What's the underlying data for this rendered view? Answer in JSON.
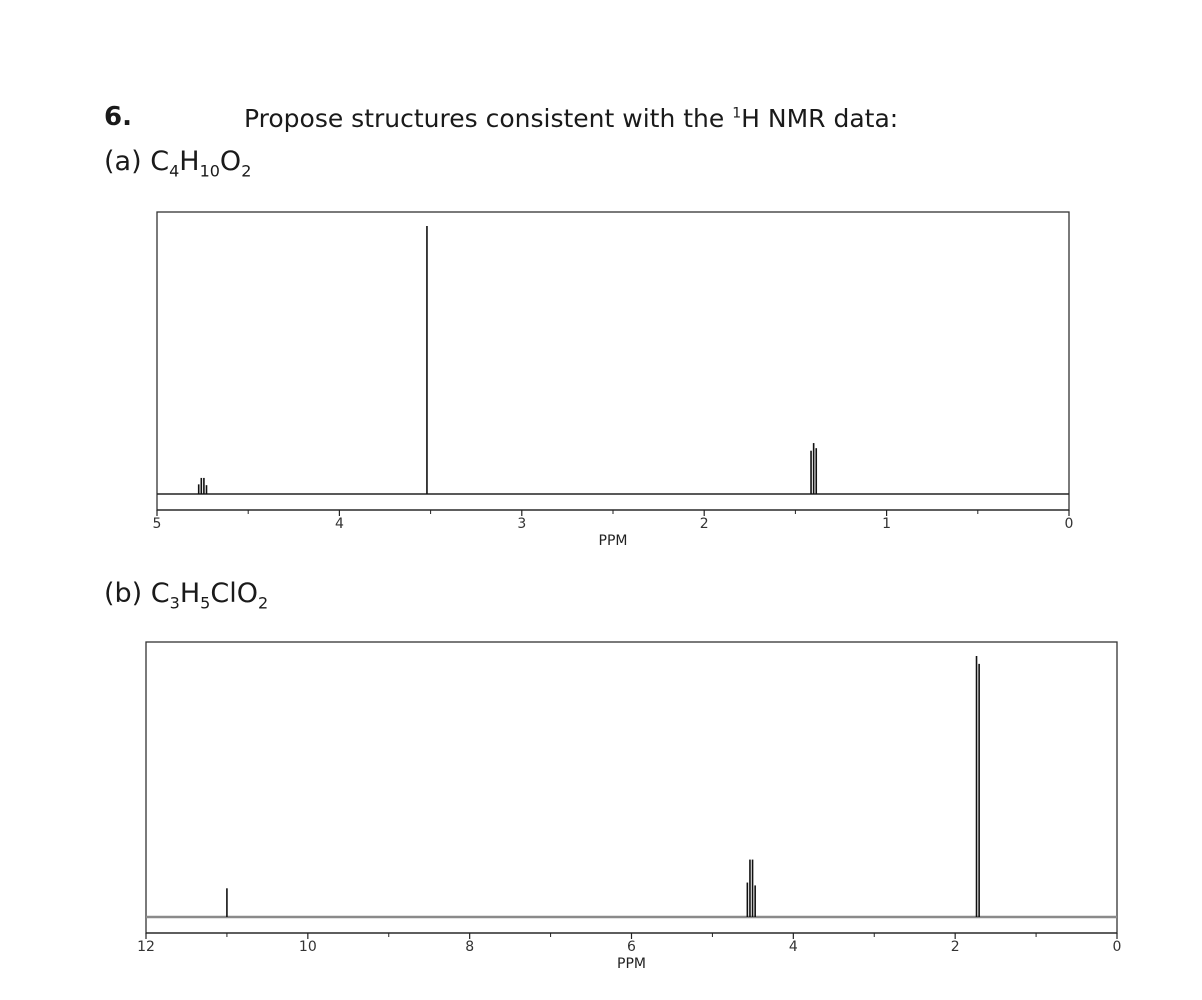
{
  "question": {
    "number": "6.",
    "text": "Propose structures consistent with the ",
    "sup": "1",
    "text_after": "H NMR data:"
  },
  "parts": [
    {
      "prefix": "(a) ",
      "formula": [
        [
          "C",
          ""
        ],
        [
          "H",
          "4"
        ],
        [
          "",
          "10"
        ],
        [
          "O",
          ""
        ],
        [
          "",
          "2"
        ]
      ]
    },
    {
      "prefix": "(b) ",
      "formula": [
        [
          "C",
          ""
        ],
        [
          "H",
          "3"
        ],
        [
          "ClO",
          "5"
        ],
        [
          "",
          "2"
        ]
      ]
    }
  ],
  "chart_data": [
    {
      "type": "line",
      "title": "",
      "xlabel": "PPM",
      "ylabel": "",
      "xlim": [
        5,
        0
      ],
      "x_ticks": [
        5,
        4,
        3,
        2,
        1,
        0
      ],
      "minor_ticks": [
        4.5,
        3.5,
        2.5,
        1.5,
        0.5
      ],
      "series": [
        {
          "values": [
            {
              "x": 4.75,
              "y": 0.06,
              "multiplicity": "quartet"
            },
            {
              "x": 3.52,
              "y": 1.0,
              "multiplicity": "singlet"
            },
            {
              "x": 1.4,
              "y": 0.19,
              "multiplicity": "triplet"
            }
          ]
        }
      ]
    },
    {
      "type": "line",
      "title": "",
      "xlabel": "PPM",
      "ylabel": "",
      "xlim": [
        12,
        0
      ],
      "x_ticks": [
        12,
        10,
        8,
        6,
        4,
        2,
        0
      ],
      "minor_ticks": [
        11,
        9,
        7,
        5,
        3,
        1
      ],
      "series": [
        {
          "values": [
            {
              "x": 11.0,
              "y": 0.11,
              "multiplicity": "singlet"
            },
            {
              "x": 4.52,
              "y": 0.22,
              "multiplicity": "quartet"
            },
            {
              "x": 1.72,
              "y": 1.0,
              "multiplicity": "doublet"
            }
          ]
        }
      ]
    }
  ]
}
